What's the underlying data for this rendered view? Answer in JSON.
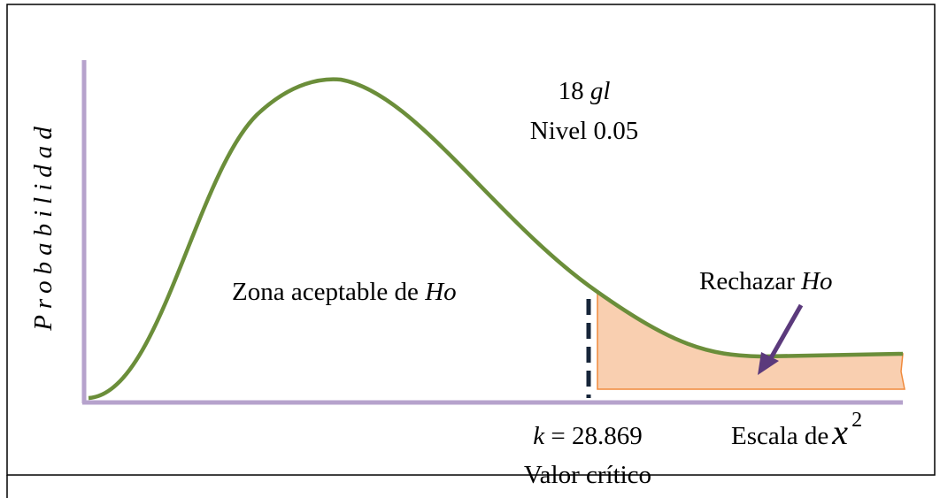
{
  "y_axis_label": "Probabilidad",
  "degrees": {
    "number": "18",
    "unit": "gl"
  },
  "level": "Nivel 0.05",
  "accept_zone": {
    "text": "Zona aceptable de",
    "symbol": "Ho"
  },
  "reject_zone": {
    "text": "Rechazar",
    "symbol": "Ho"
  },
  "critical": {
    "symbol": "k",
    "value": "= 28.869",
    "caption": "Valor crítico"
  },
  "x_axis": {
    "text": "Escala de",
    "symbol": "x",
    "exponent": "2"
  }
}
